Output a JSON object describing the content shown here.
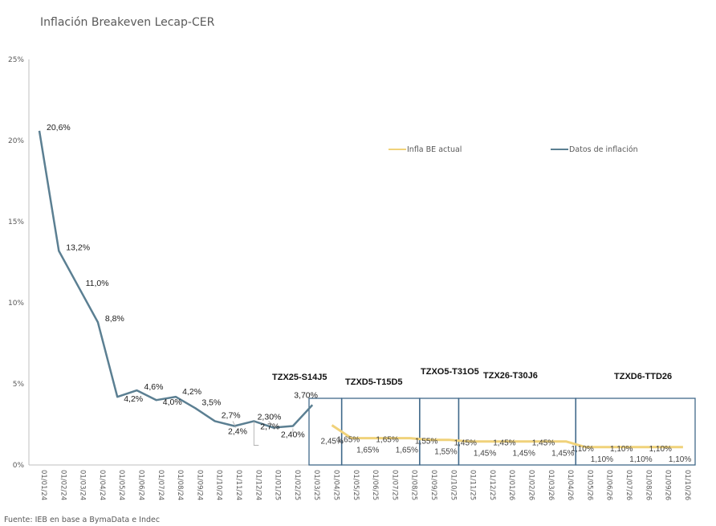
{
  "chart_data": {
    "type": "line",
    "title": "Inflación Breakeven Lecap-CER",
    "source": "Fuente: IEB en base a BymaData e Indec",
    "xlabel": "",
    "ylabel": "",
    "ylim": [
      0,
      25
    ],
    "yticks": [
      "0%",
      "5%",
      "10%",
      "15%",
      "20%",
      "25%"
    ],
    "ytick_values": [
      0,
      5,
      10,
      15,
      20,
      25
    ],
    "grid": false,
    "legend_position": "top-right",
    "categories": [
      "01/01/24",
      "01/02/24",
      "01/03/24",
      "01/04/24",
      "01/05/24",
      "01/06/24",
      "01/07/24",
      "01/08/24",
      "01/09/24",
      "01/10/24",
      "01/11/24",
      "01/12/24",
      "01/01/25",
      "01/02/25",
      "01/03/25",
      "01/04/25",
      "01/05/25",
      "01/06/25",
      "01/07/25",
      "01/08/25",
      "01/09/25",
      "01/10/25",
      "01/11/25",
      "01/12/25",
      "01/01/26",
      "01/02/26",
      "01/03/26",
      "01/04/26",
      "01/05/26",
      "01/06/26",
      "01/07/26",
      "01/08/26",
      "01/09/26",
      "01/10/26"
    ],
    "series": [
      {
        "name": "Datos de inflación",
        "color": "#5b7f92",
        "start_index": 0,
        "values": [
          20.6,
          13.2,
          11.0,
          8.8,
          4.2,
          4.6,
          4.0,
          4.2,
          3.5,
          2.7,
          2.4,
          2.7,
          2.3,
          2.4,
          3.7
        ],
        "labels": [
          "20,6%",
          "13,2%",
          "11,0%",
          "8,8%",
          "4,2%",
          "4,6%",
          "4,0%",
          "4,2%",
          "3,5%",
          "2,7%",
          "2,4%",
          "2,7%",
          "2,30%",
          "2,40%",
          "3,70%"
        ]
      },
      {
        "name": "Infla BE actual",
        "color": "#f0d27a",
        "start_index": 15,
        "values": [
          2.45,
          1.65,
          1.65,
          1.65,
          1.65,
          1.55,
          1.55,
          1.45,
          1.45,
          1.45,
          1.45,
          1.45,
          1.45,
          1.1,
          1.1,
          1.1,
          1.1,
          1.1,
          1.1
        ],
        "labels": [
          "2,45%",
          "1,65%",
          "1,65%",
          "1,65%",
          "1,65%",
          "1,55%",
          "1,55%",
          "1,45%",
          "1,45%",
          "1,45%",
          "1,45%",
          "1,45%",
          "1,45%",
          "1,10%",
          "1,10%",
          "1,10%",
          "1,10%",
          "1,10%",
          "1,10%"
        ]
      }
    ],
    "bond_periods": [
      {
        "label": "TZX25-S14J5",
        "from": "01/03/25",
        "to": "01/04/25"
      },
      {
        "label": "TZXD5-T15D5",
        "from": "01/05/25",
        "to": "01/08/25"
      },
      {
        "label": "TZXO5-T31O5",
        "from": "01/09/25",
        "to": "01/10/25"
      },
      {
        "label": "TZX26-T30J6",
        "from": "01/11/25",
        "to": "01/04/26"
      },
      {
        "label": "TZXD6-TTD26",
        "from": "01/05/26",
        "to": "01/10/26"
      }
    ],
    "box_color": "#41698a"
  }
}
